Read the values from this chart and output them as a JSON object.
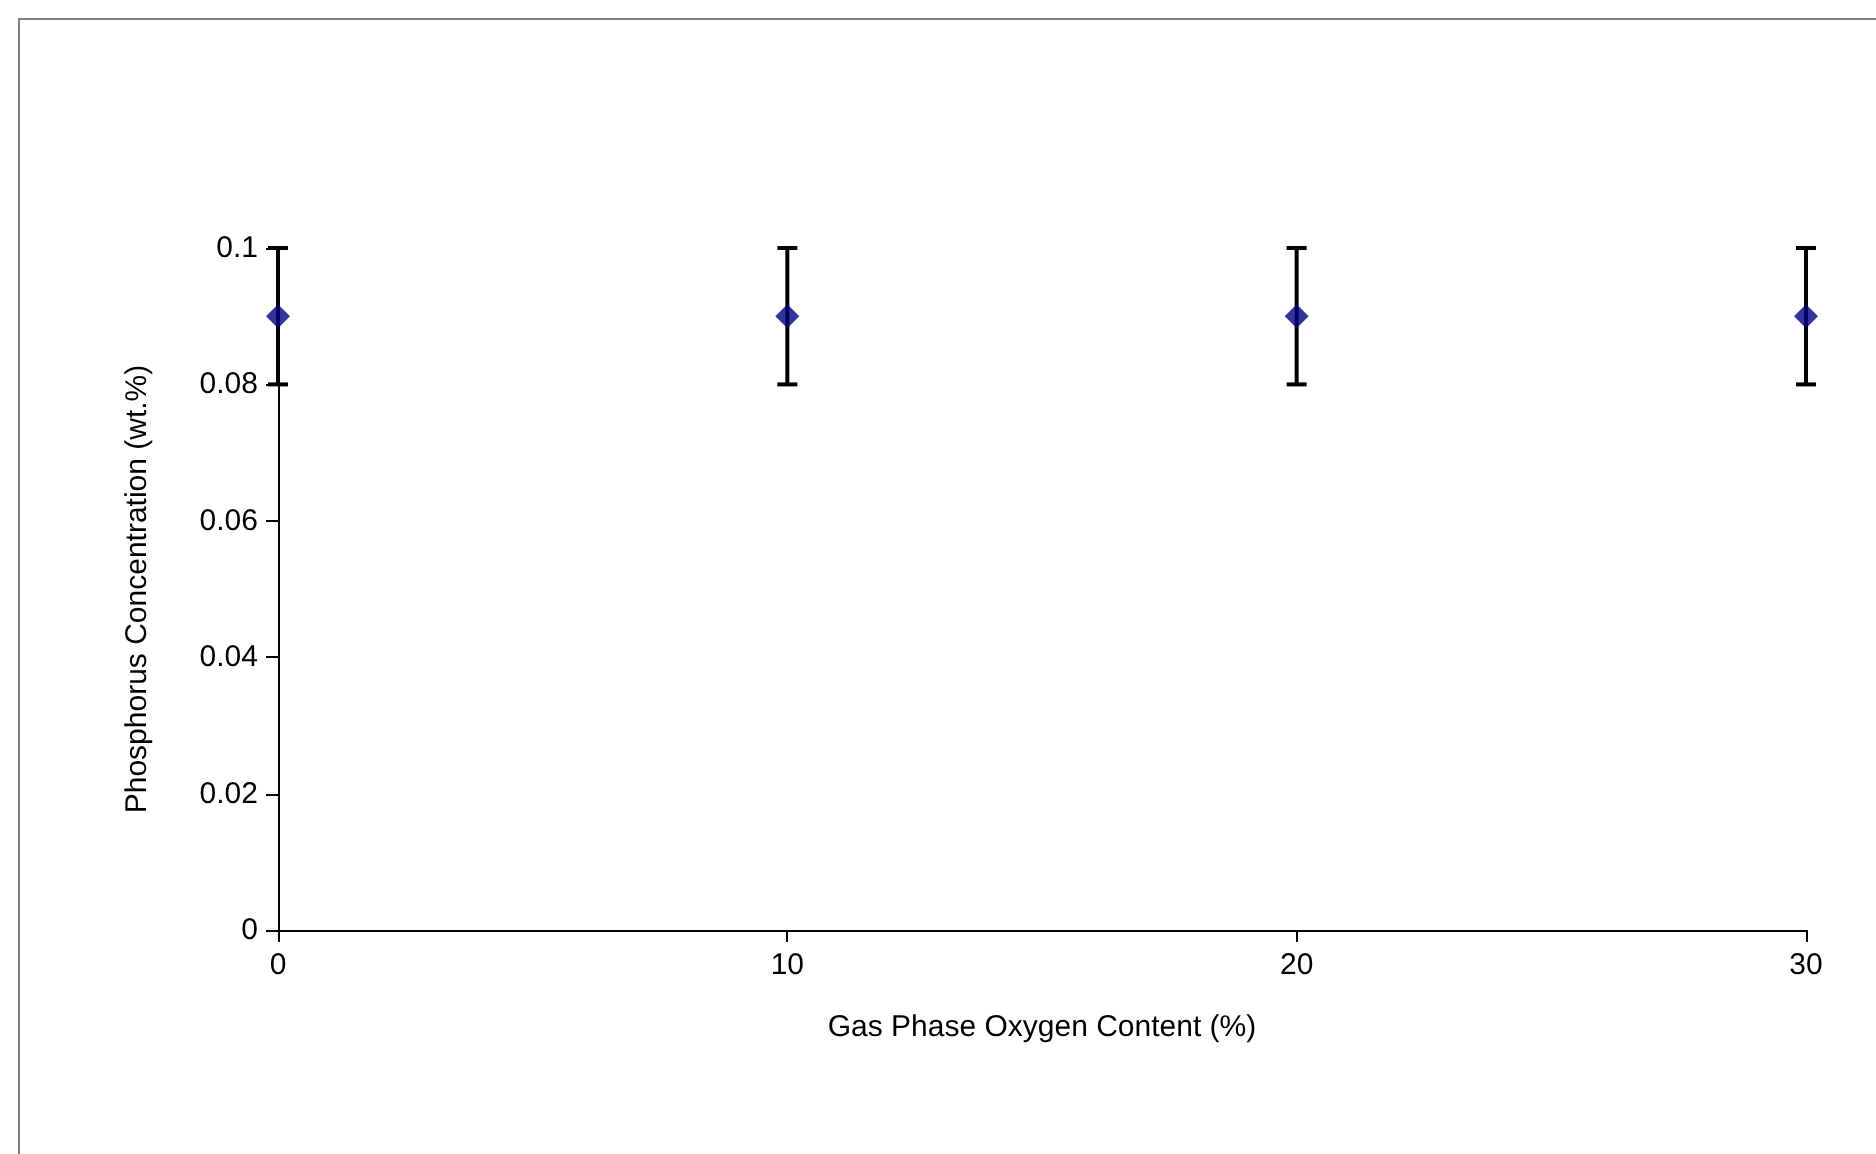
{
  "chart_data": {
    "type": "scatter",
    "xlabel": "Gas Phase Oxygen Content (%)",
    "ylabel": "Phosphorus Concentration (wt.%)",
    "x": [
      0,
      10,
      20,
      30
    ],
    "values": [
      0.09,
      0.09,
      0.09,
      0.09
    ],
    "errors": [
      0.01,
      0.01,
      0.01,
      0.01
    ],
    "color": "#000080",
    "marker": "diamond",
    "xlim": [
      0,
      30
    ],
    "xticks": [
      0,
      10,
      20,
      30
    ],
    "ylim": [
      0,
      0.1
    ],
    "yticks": [
      0,
      0.02,
      0.04,
      0.06,
      0.08,
      0.1
    ]
  }
}
